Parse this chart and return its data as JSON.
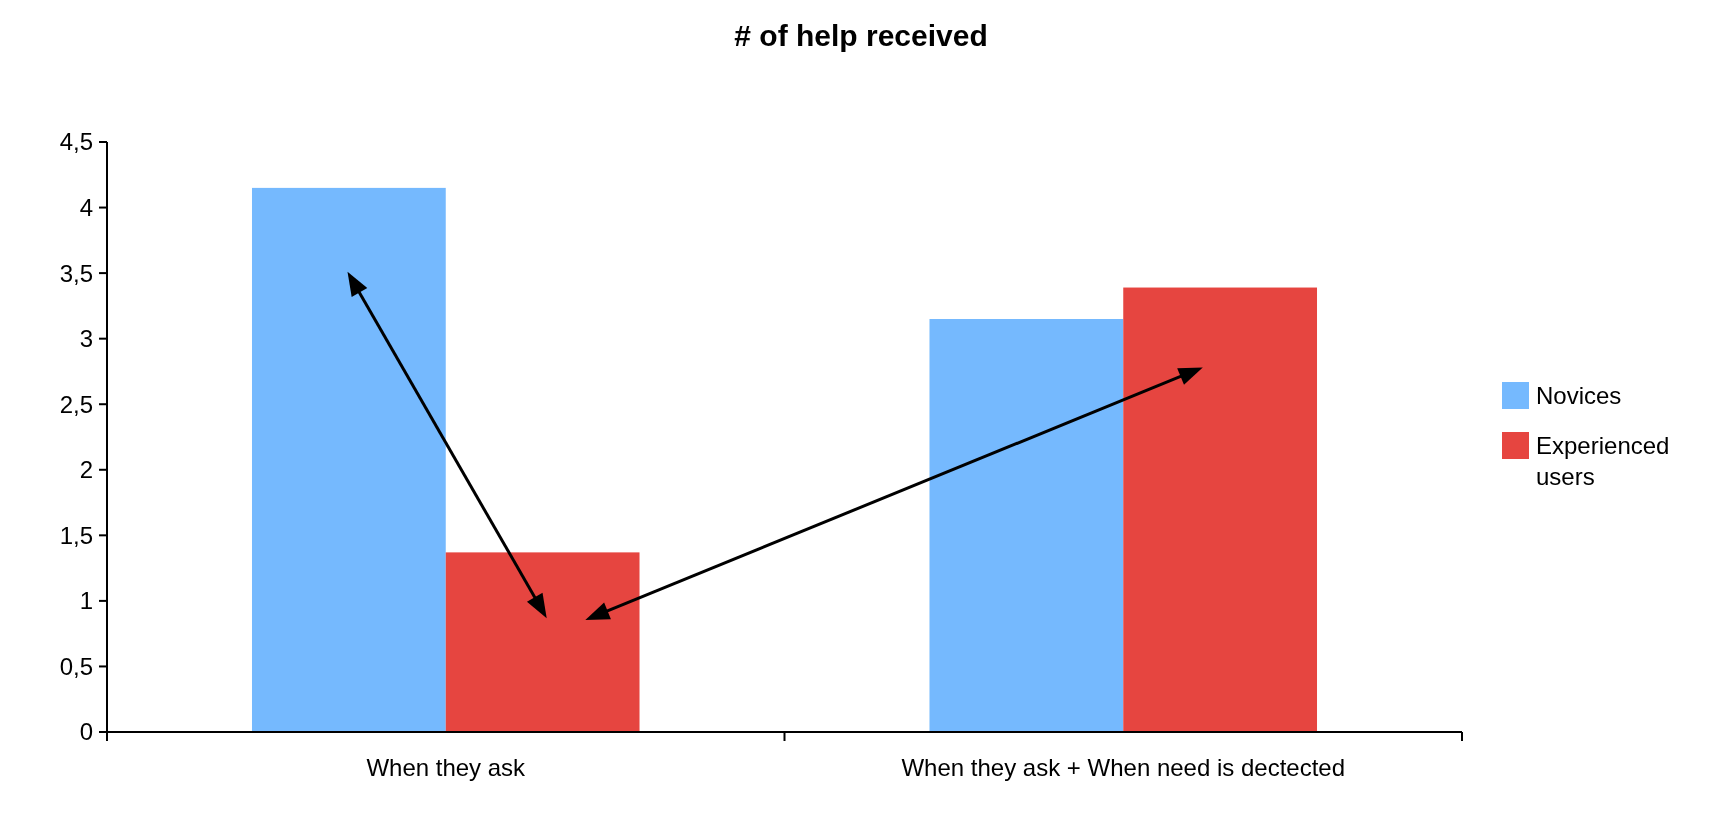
{
  "chart_data": {
    "type": "bar",
    "title": "# of help received",
    "categories": [
      "When they ask",
      "When they ask + When need is dectected"
    ],
    "series": [
      {
        "name": "Novices",
        "color": "#75b9fe",
        "values": [
          4.15,
          3.15
        ]
      },
      {
        "name": "Experienced users",
        "color": "#e64540",
        "values": [
          1.37,
          3.39
        ]
      }
    ],
    "ylim": [
      0,
      4.5
    ],
    "yticks": [
      0,
      {
        "value": 0.5,
        "label": "0,5"
      },
      1,
      {
        "value": 1.5,
        "label": "1,5"
      },
      2,
      {
        "value": 2.5,
        "label": "2,5"
      },
      3,
      {
        "value": 3.5,
        "label": "3,5"
      },
      4,
      {
        "value": 4.5,
        "label": "4,5"
      }
    ],
    "grid": false,
    "legend": "right"
  }
}
